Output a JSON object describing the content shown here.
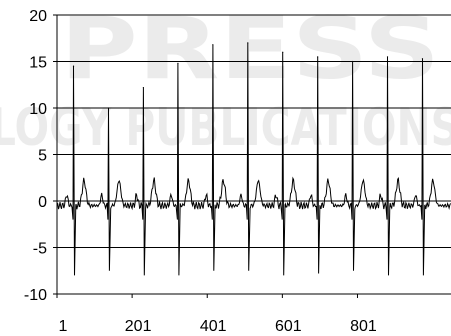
{
  "chart_data": {
    "type": "line",
    "title": "",
    "xlabel": "",
    "ylabel": "",
    "xlim": [
      1,
      1050
    ],
    "ylim": [
      -10,
      20
    ],
    "y_ticks": [
      -10,
      -5,
      0,
      5,
      10,
      15,
      20
    ],
    "x_ticks": [
      1,
      201,
      401,
      601,
      801
    ],
    "grid": "horizontal",
    "line_color": "#000000",
    "series": [
      {
        "beat_r_peak_x": [
          45,
          138,
          231,
          323,
          416,
          509,
          602,
          695,
          788,
          881,
          974
        ],
        "beat_r_peak_y": [
          14.5,
          10.0,
          12.2,
          14.8,
          16.8,
          17.0,
          16.0,
          15.5,
          15.0,
          15.5,
          15.3
        ],
        "beat_s_trough_y": [
          -8.0,
          -7.5,
          -8.0,
          -8.0,
          -7.5,
          -7.5,
          -8.0,
          -7.8,
          -7.5,
          -8.0,
          -8.0
        ],
        "t_wave_peak_y": 2.2,
        "baseline_y": -0.5
      }
    ]
  },
  "watermark": {
    "line1": "PRESS",
    "line2": "LOGY PUBLICATIONS"
  },
  "colors": {
    "axis": "#000000",
    "grid": "#000000",
    "watermark": "#c8c8c8"
  }
}
